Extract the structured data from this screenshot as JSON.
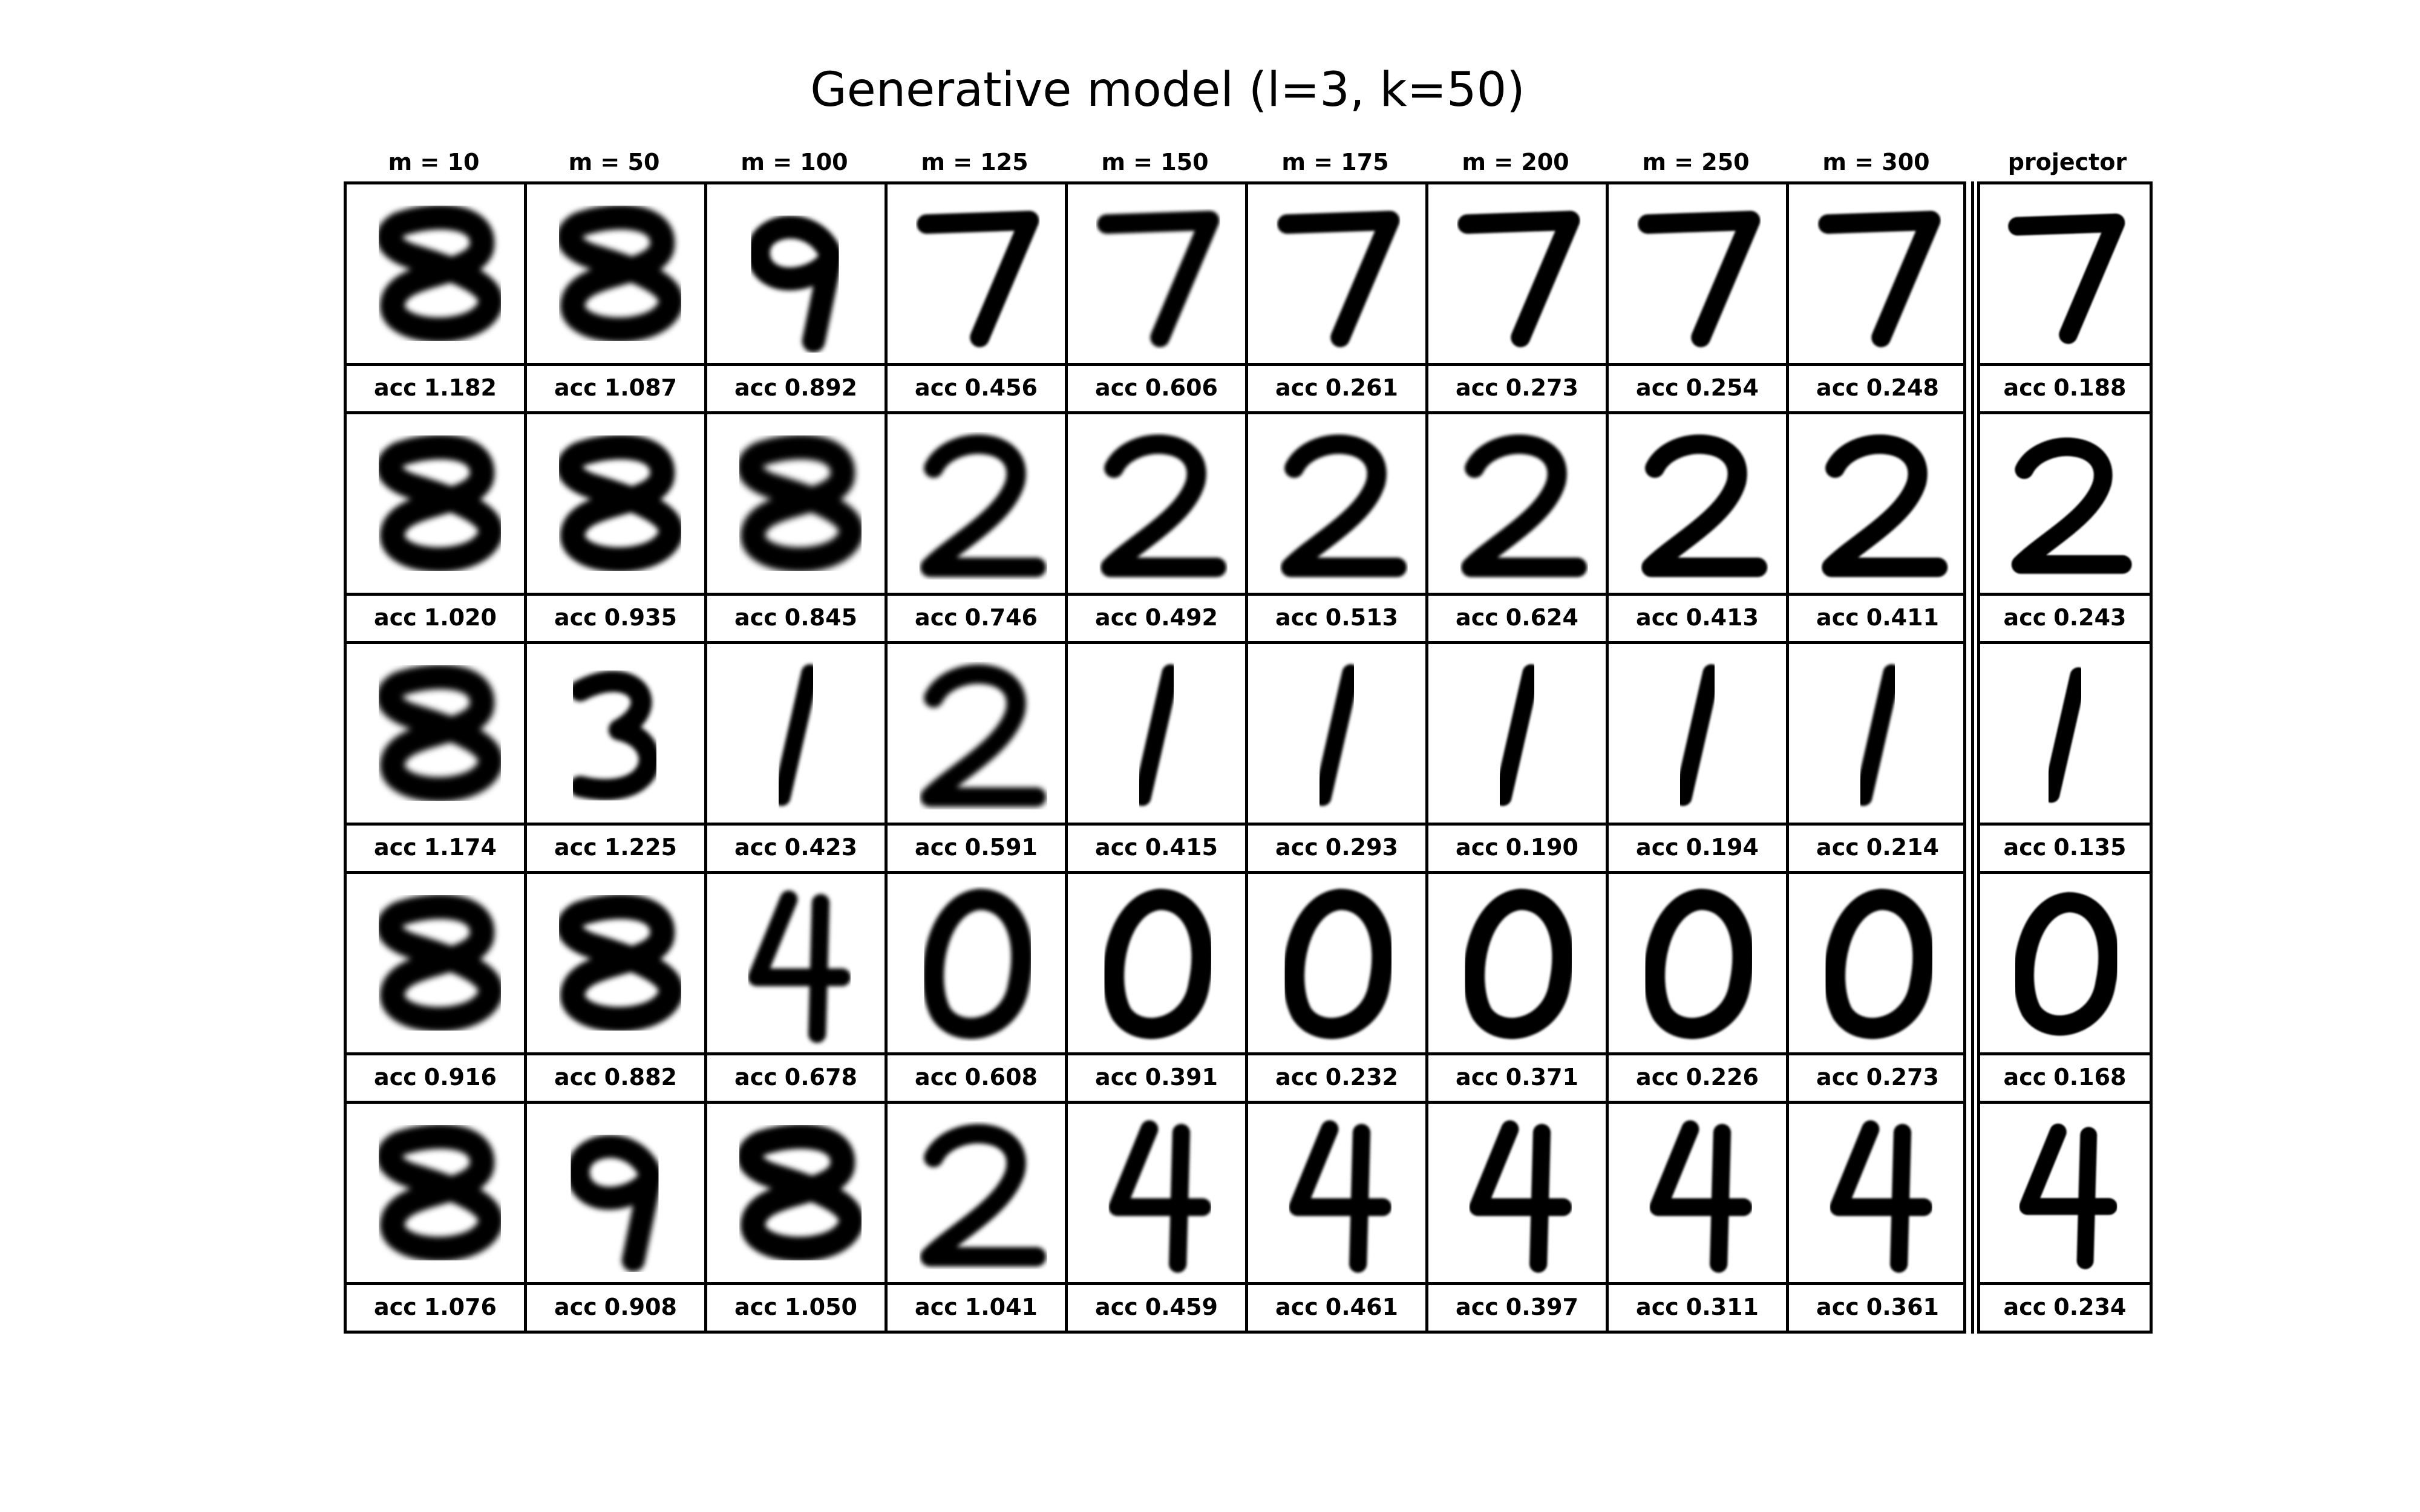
{
  "title": "Generative model (l=3, k=50)",
  "columns": [
    "m = 10",
    "m = 50",
    "m = 100",
    "m = 125",
    "m = 150",
    "m = 175",
    "m = 200",
    "m = 250",
    "m = 300",
    "projector"
  ],
  "acc_label": "acc",
  "rows": [
    {
      "digit": "7",
      "acc": [
        "1.182",
        "1.087",
        "0.892",
        "0.456",
        "0.606",
        "0.261",
        "0.273",
        "0.254",
        "0.248",
        "0.188"
      ]
    },
    {
      "digit": "2",
      "acc": [
        "1.020",
        "0.935",
        "0.845",
        "0.746",
        "0.492",
        "0.513",
        "0.624",
        "0.413",
        "0.411",
        "0.243"
      ]
    },
    {
      "digit": "1",
      "acc": [
        "1.174",
        "1.225",
        "0.423",
        "0.591",
        "0.415",
        "0.293",
        "0.190",
        "0.194",
        "0.214",
        "0.135"
      ]
    },
    {
      "digit": "0",
      "acc": [
        "0.916",
        "0.882",
        "0.678",
        "0.608",
        "0.391",
        "0.232",
        "0.371",
        "0.226",
        "0.273",
        "0.168"
      ]
    },
    {
      "digit": "4",
      "acc": [
        "1.076",
        "0.908",
        "1.050",
        "1.041",
        "0.459",
        "0.461",
        "0.397",
        "0.311",
        "0.361",
        "0.234"
      ]
    }
  ]
}
